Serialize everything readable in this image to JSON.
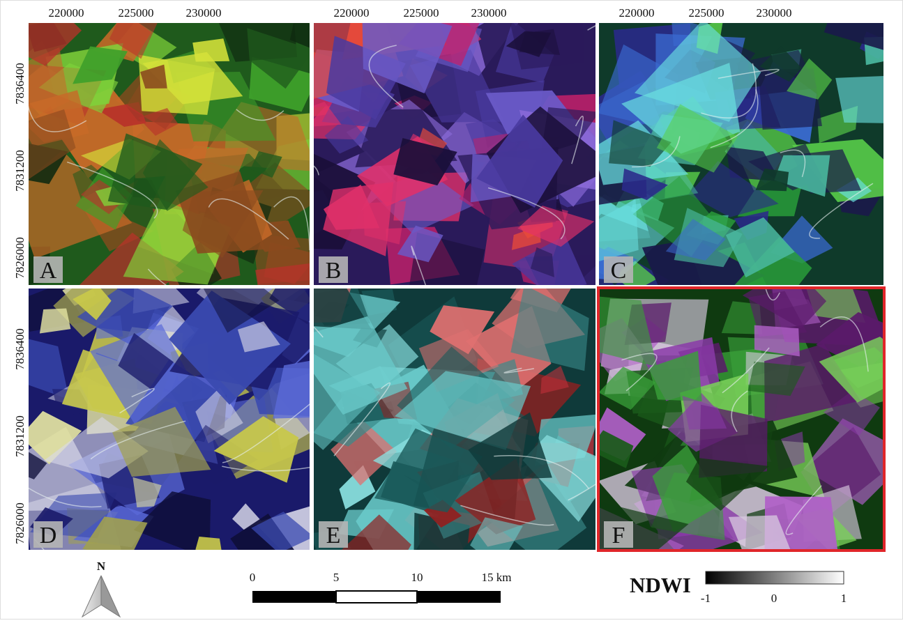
{
  "x_ticks": [
    "220000",
    "225000",
    "230000"
  ],
  "y_ticks": [
    "7836400",
    "7831200",
    "7826000"
  ],
  "panels": [
    {
      "label": "A"
    },
    {
      "label": "B"
    },
    {
      "label": "C"
    },
    {
      "label": "D"
    },
    {
      "label": "E"
    },
    {
      "label": "F"
    }
  ],
  "north_arrow": {
    "label": "N"
  },
  "scale_bar": {
    "labels": [
      "0",
      "5",
      "10",
      "15 km"
    ]
  },
  "legend": {
    "title": "NDWI",
    "labels": [
      "-1",
      "0",
      "1"
    ]
  }
}
